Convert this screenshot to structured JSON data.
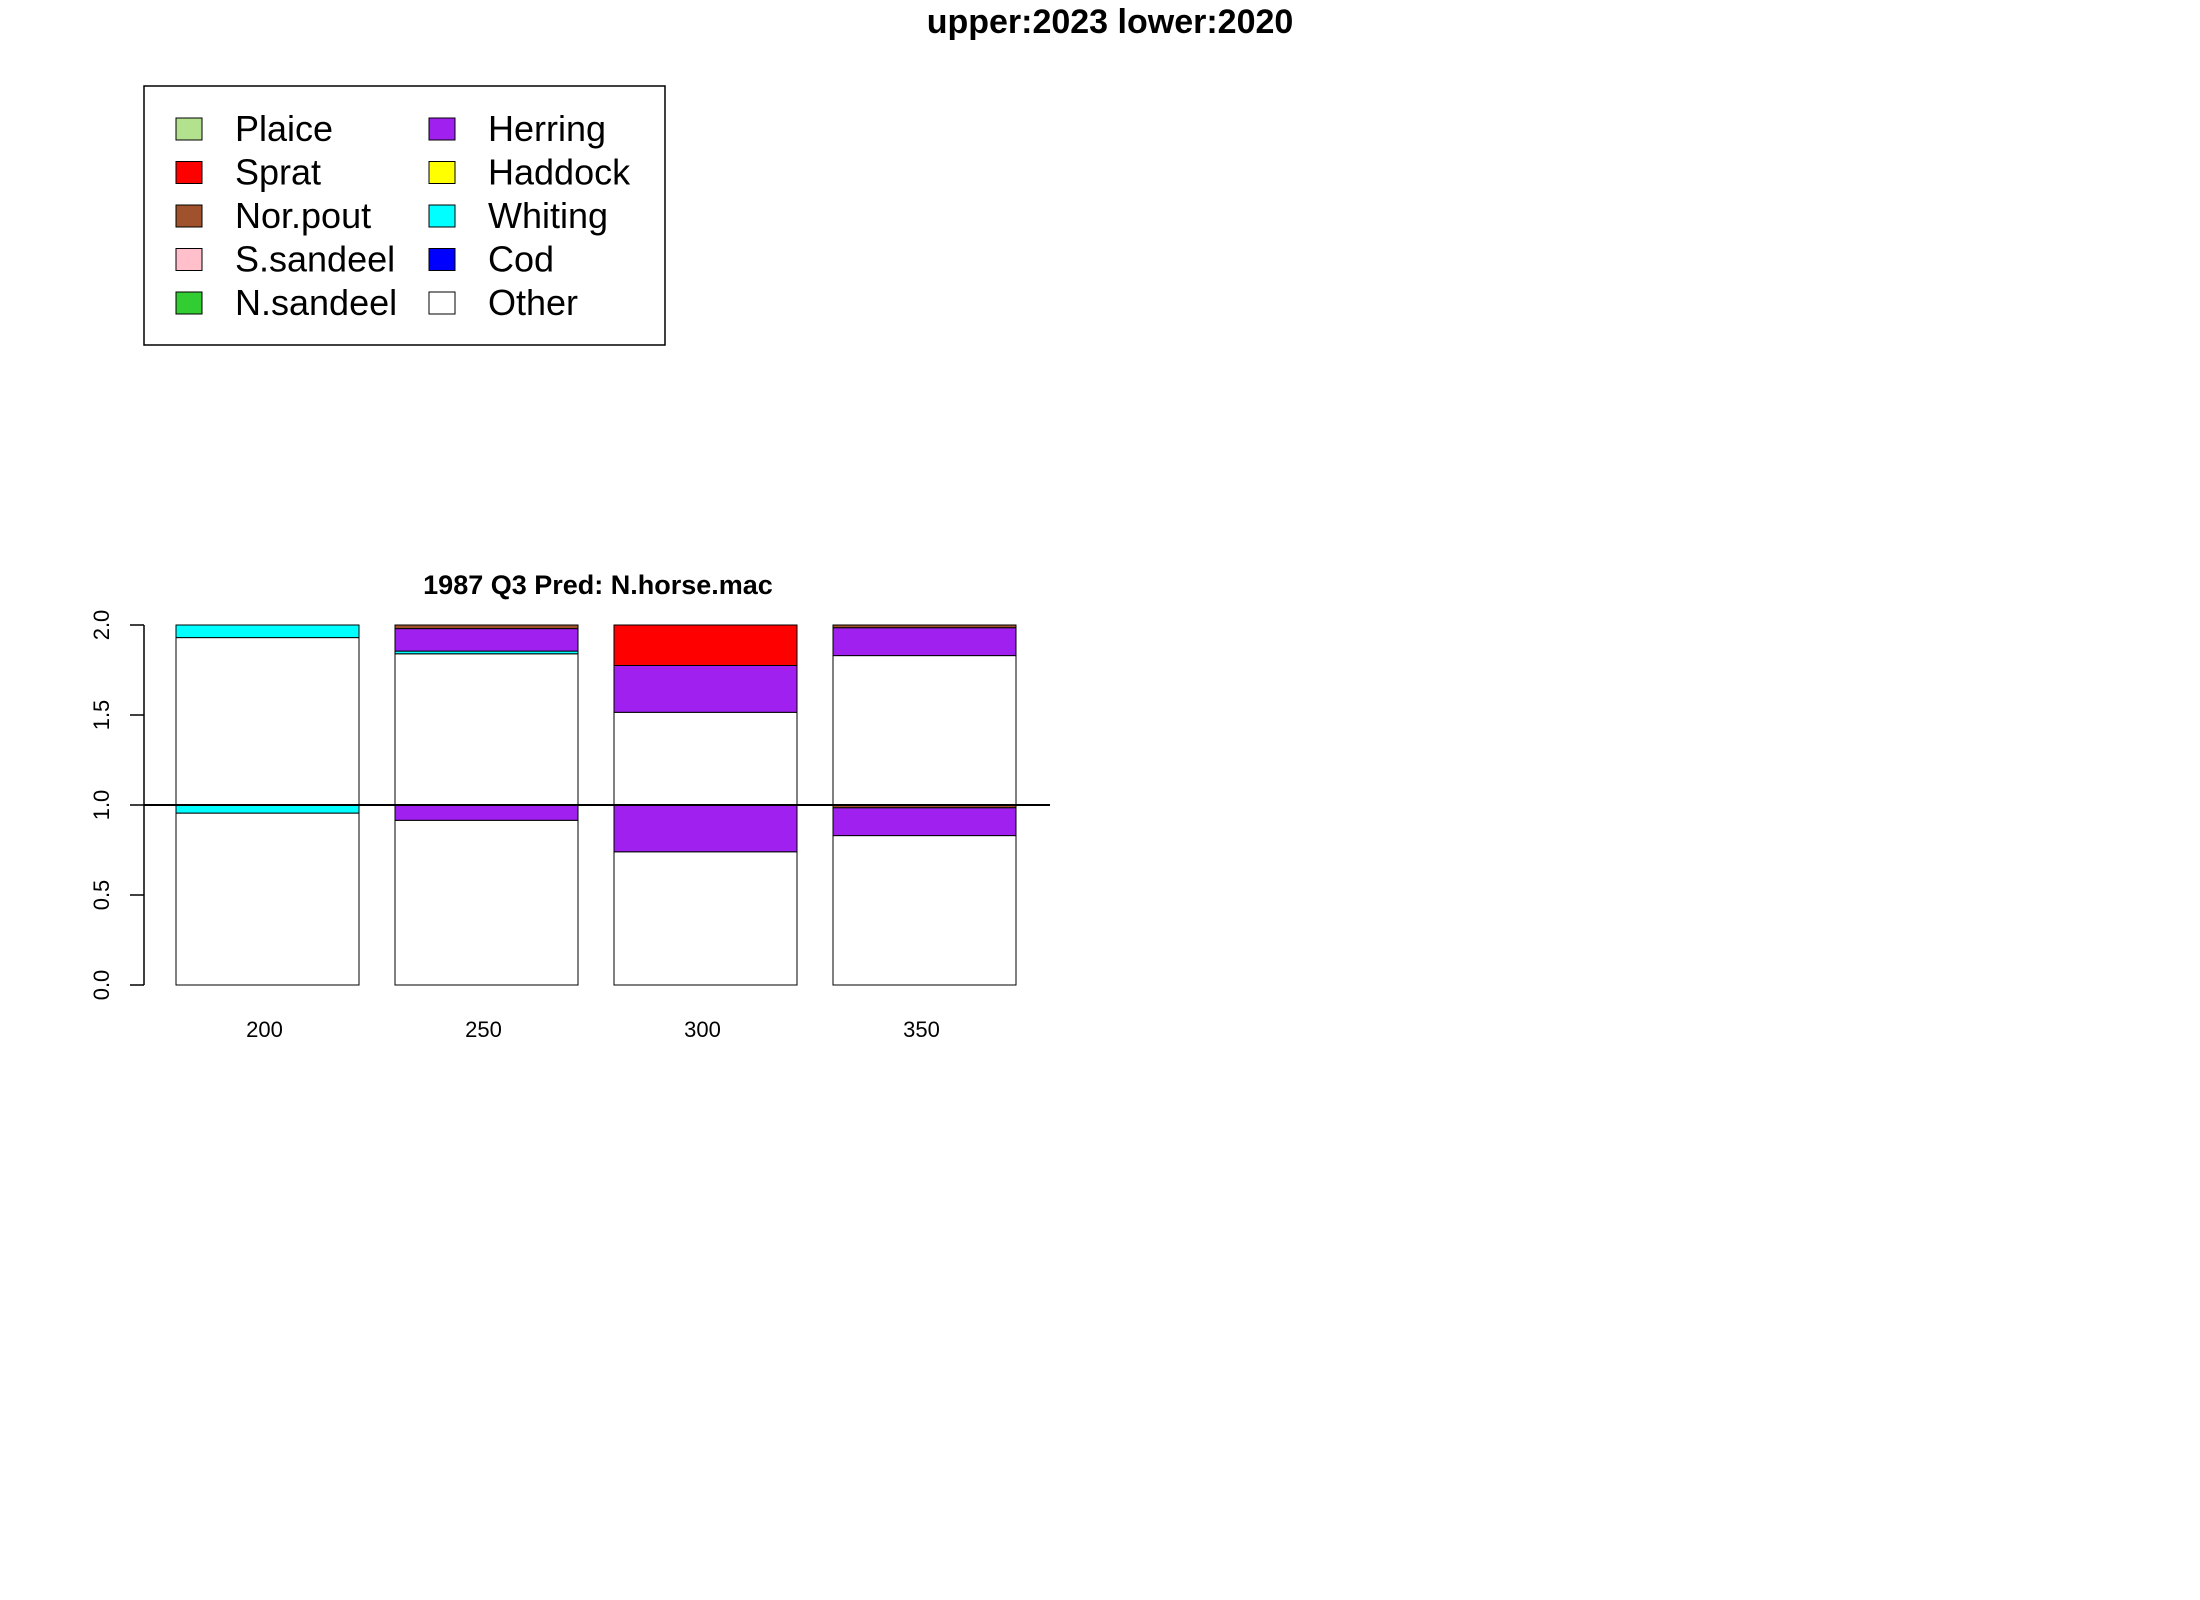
{
  "page_title": "upper:2023  lower:2020",
  "legend": {
    "items": [
      {
        "label": "Plaice",
        "color": "#B3E28F"
      },
      {
        "label": "Sprat",
        "color": "#FF0000"
      },
      {
        "label": "Nor.pout",
        "color": "#A0522D"
      },
      {
        "label": "S.sandeel",
        "color": "#FFC0CB"
      },
      {
        "label": "N.sandeel",
        "color": "#32CD32"
      },
      {
        "label": "Herring",
        "color": "#A020F0"
      },
      {
        "label": "Haddock",
        "color": "#FFFF00"
      },
      {
        "label": "Whiting",
        "color": "#00FFFF"
      },
      {
        "label": "Cod",
        "color": "#0000FF"
      },
      {
        "label": "Other",
        "color": "#FFFFFF"
      }
    ]
  },
  "chart_data": {
    "type": "bar",
    "title": "1987 Q3  Pred: N.horse.mac",
    "categories": [
      "200",
      "250",
      "300",
      "350"
    ],
    "yticks": [
      "0.0",
      "0.5",
      "1.0",
      "1.5",
      "2.0"
    ],
    "ylim": [
      0,
      2
    ],
    "reference_line": 1.0,
    "stacking": "stacked proportions; lower bar (2020) spans 0–1, upper bar (2023) spans 1–2",
    "lower": {
      "label": "2020",
      "series": [
        {
          "name": "Other",
          "values": [
            0.955,
            0.915,
            0.74,
            0.83
          ]
        },
        {
          "name": "Herring",
          "values": [
            0.0,
            0.085,
            0.26,
            0.155
          ]
        },
        {
          "name": "Whiting",
          "values": [
            0.045,
            0.0,
            0.0,
            0.0
          ]
        },
        {
          "name": "Nor.pout",
          "values": [
            0.0,
            0.0,
            0.0,
            0.015
          ]
        }
      ]
    },
    "upper": {
      "label": "2023",
      "series": [
        {
          "name": "Other",
          "values": [
            0.93,
            0.84,
            0.515,
            0.83
          ]
        },
        {
          "name": "Whiting",
          "values": [
            0.07,
            0.015,
            0.0,
            0.0
          ]
        },
        {
          "name": "Herring",
          "values": [
            0.0,
            0.125,
            0.26,
            0.155
          ]
        },
        {
          "name": "Sprat",
          "values": [
            0.0,
            0.0,
            0.225,
            0.0
          ]
        },
        {
          "name": "Nor.pout",
          "values": [
            0.0,
            0.02,
            0.0,
            0.015
          ]
        }
      ]
    }
  }
}
